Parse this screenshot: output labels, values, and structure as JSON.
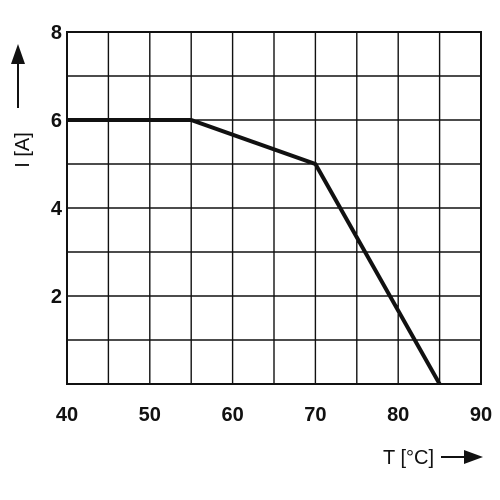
{
  "chart_data": {
    "type": "line",
    "title": "",
    "xlabel": "T [°C]",
    "ylabel": "I [A]",
    "xlim": [
      40,
      90
    ],
    "ylim": [
      0,
      8
    ],
    "x_ticks": [
      40,
      50,
      60,
      70,
      80,
      90
    ],
    "y_ticks": [
      2,
      4,
      6,
      8
    ],
    "x_tick_labels": [
      "40",
      "50",
      "60",
      "70",
      "80",
      "90"
    ],
    "y_tick_labels": [
      "2",
      "4",
      "6",
      "8"
    ],
    "x_grid_step": 5,
    "y_grid_step": 1,
    "grid": true,
    "series": [
      {
        "points": [
          {
            "x": 40,
            "y": 6
          },
          {
            "x": 55,
            "y": 6
          },
          {
            "x": 70,
            "y": 5
          },
          {
            "x": 85,
            "y": 0
          }
        ]
      }
    ],
    "colors": {
      "line": "#111111",
      "grid": "#111111"
    }
  }
}
